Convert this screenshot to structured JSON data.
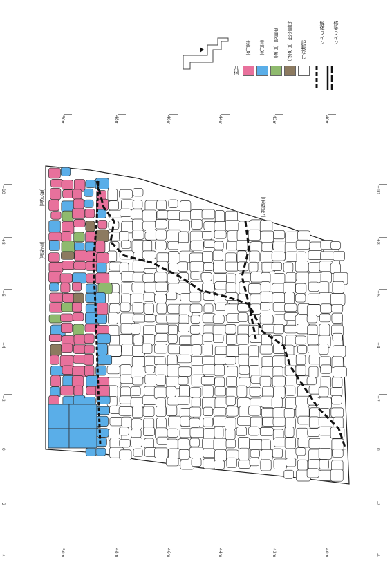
{
  "map": {
    "legend_title": "凡例",
    "legend_items": [
      {
        "label": "赤戸室",
        "color": "#e8719c"
      },
      {
        "label": "青戸室",
        "color": "#5aaee8"
      },
      {
        "label": "中間色（戸室）",
        "color": "#8fba6e"
      },
      {
        "label": "色調不明（戸室か）",
        "color": "#8c7a60"
      },
      {
        "label": "記載なし",
        "color": "#ffffff"
      }
    ],
    "line_legend": [
      {
        "label": "解体ライン"
      },
      {
        "label": "修築ライン"
      }
    ],
    "annotations": {
      "kanbun": "［寛文期］",
      "kyoho": "［享保期］",
      "genroku": "［元禄期?］"
    },
    "axis_left": [
      "+10",
      "+8",
      "+6",
      "+4",
      "+2",
      "0",
      "-2",
      "-4"
    ],
    "axis_right": [
      "+10",
      "+8",
      "+6",
      "+4",
      "+2",
      "0",
      "-2",
      "-4"
    ],
    "axis_top": [
      "50m",
      "48m",
      "46m",
      "44m",
      "42m",
      "40m"
    ],
    "axis_bottom": [
      "50m",
      "48m",
      "46m",
      "44m",
      "42m",
      "40m"
    ],
    "colors": {
      "red": "#e8719c",
      "blue": "#5aaee8",
      "green": "#8fba6e",
      "brown": "#8c7a60"
    }
  }
}
